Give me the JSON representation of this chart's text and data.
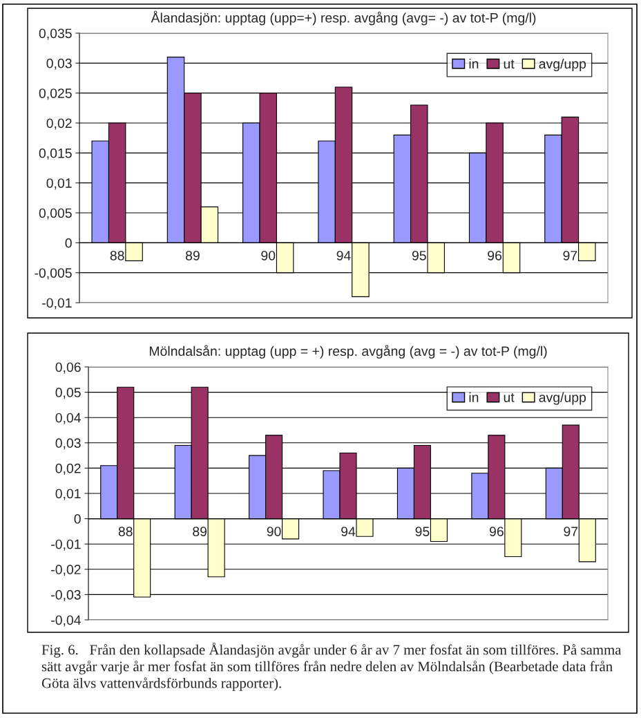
{
  "chart_data": [
    {
      "type": "bar",
      "title": "Ålandasjön: upptag (upp=+) resp. avgång (avg= -) av tot-P (mg/l)",
      "categories": [
        "88",
        "89",
        "90",
        "94",
        "95",
        "96",
        "97"
      ],
      "series": [
        {
          "name": "in",
          "color": "#9999ff",
          "values": [
            0.017,
            0.031,
            0.02,
            0.017,
            0.018,
            0.015,
            0.018
          ]
        },
        {
          "name": "ut",
          "color": "#993366",
          "values": [
            0.02,
            0.025,
            0.025,
            0.026,
            0.023,
            0.02,
            0.021
          ]
        },
        {
          "name": "avg/upp",
          "color": "#ffffcc",
          "values": [
            -0.003,
            0.006,
            -0.005,
            -0.009,
            -0.005,
            -0.005,
            -0.003
          ]
        }
      ],
      "ylim": [
        -0.01,
        0.035
      ],
      "yticks": [
        {
          "value": -0.01,
          "label": "-0,01"
        },
        {
          "value": -0.005,
          "label": "-0,005"
        },
        {
          "value": 0,
          "label": "0"
        },
        {
          "value": 0.005,
          "label": "0,005"
        },
        {
          "value": 0.01,
          "label": "0,01"
        },
        {
          "value": 0.015,
          "label": "0,015"
        },
        {
          "value": 0.02,
          "label": "0,02"
        },
        {
          "value": 0.025,
          "label": "0,025"
        },
        {
          "value": 0.03,
          "label": "0,03"
        },
        {
          "value": 0.035,
          "label": "0,035"
        }
      ],
      "grid": "y",
      "legend": "top right"
    },
    {
      "type": "bar",
      "title": "Mölndalsån: upptag (upp = +) resp. avgång (avg = -) av tot-P (mg/l)",
      "categories": [
        "88",
        "89",
        "90",
        "94",
        "95",
        "96",
        "97"
      ],
      "series": [
        {
          "name": "in",
          "color": "#9999ff",
          "values": [
            0.021,
            0.029,
            0.025,
            0.019,
            0.02,
            0.018,
            0.02
          ]
        },
        {
          "name": "ut",
          "color": "#993366",
          "values": [
            0.052,
            0.052,
            0.033,
            0.026,
            0.029,
            0.033,
            0.037
          ]
        },
        {
          "name": "avg/upp",
          "color": "#ffffcc",
          "values": [
            -0.031,
            -0.023,
            -0.008,
            -0.007,
            -0.009,
            -0.015,
            -0.017
          ]
        }
      ],
      "ylim": [
        -0.04,
        0.06
      ],
      "yticks": [
        {
          "value": -0.04,
          "label": "-0,04"
        },
        {
          "value": -0.03,
          "label": "-0,03"
        },
        {
          "value": -0.02,
          "label": "-0,02"
        },
        {
          "value": -0.01,
          "label": "-0,01"
        },
        {
          "value": 0,
          "label": "0"
        },
        {
          "value": 0.01,
          "label": "0,01"
        },
        {
          "value": 0.02,
          "label": "0,02"
        },
        {
          "value": 0.03,
          "label": "0,03"
        },
        {
          "value": 0.04,
          "label": "0,04"
        },
        {
          "value": 0.05,
          "label": "0,05"
        },
        {
          "value": 0.06,
          "label": "0,06"
        }
      ],
      "grid": "y",
      "legend": "top right",
      "annotations": [
        "Fig. 6.   Från den kollapsade Ålandasjön avgår under 6 år av 7 mer fosfat än som tillföres. På samma sätt avgår varje år mer fosfat än som tillföres från nedre delen av Mölndalsån (Bearbetade data från Göta älvs vattenvårdsförbunds rapporter)."
      ]
    }
  ]
}
